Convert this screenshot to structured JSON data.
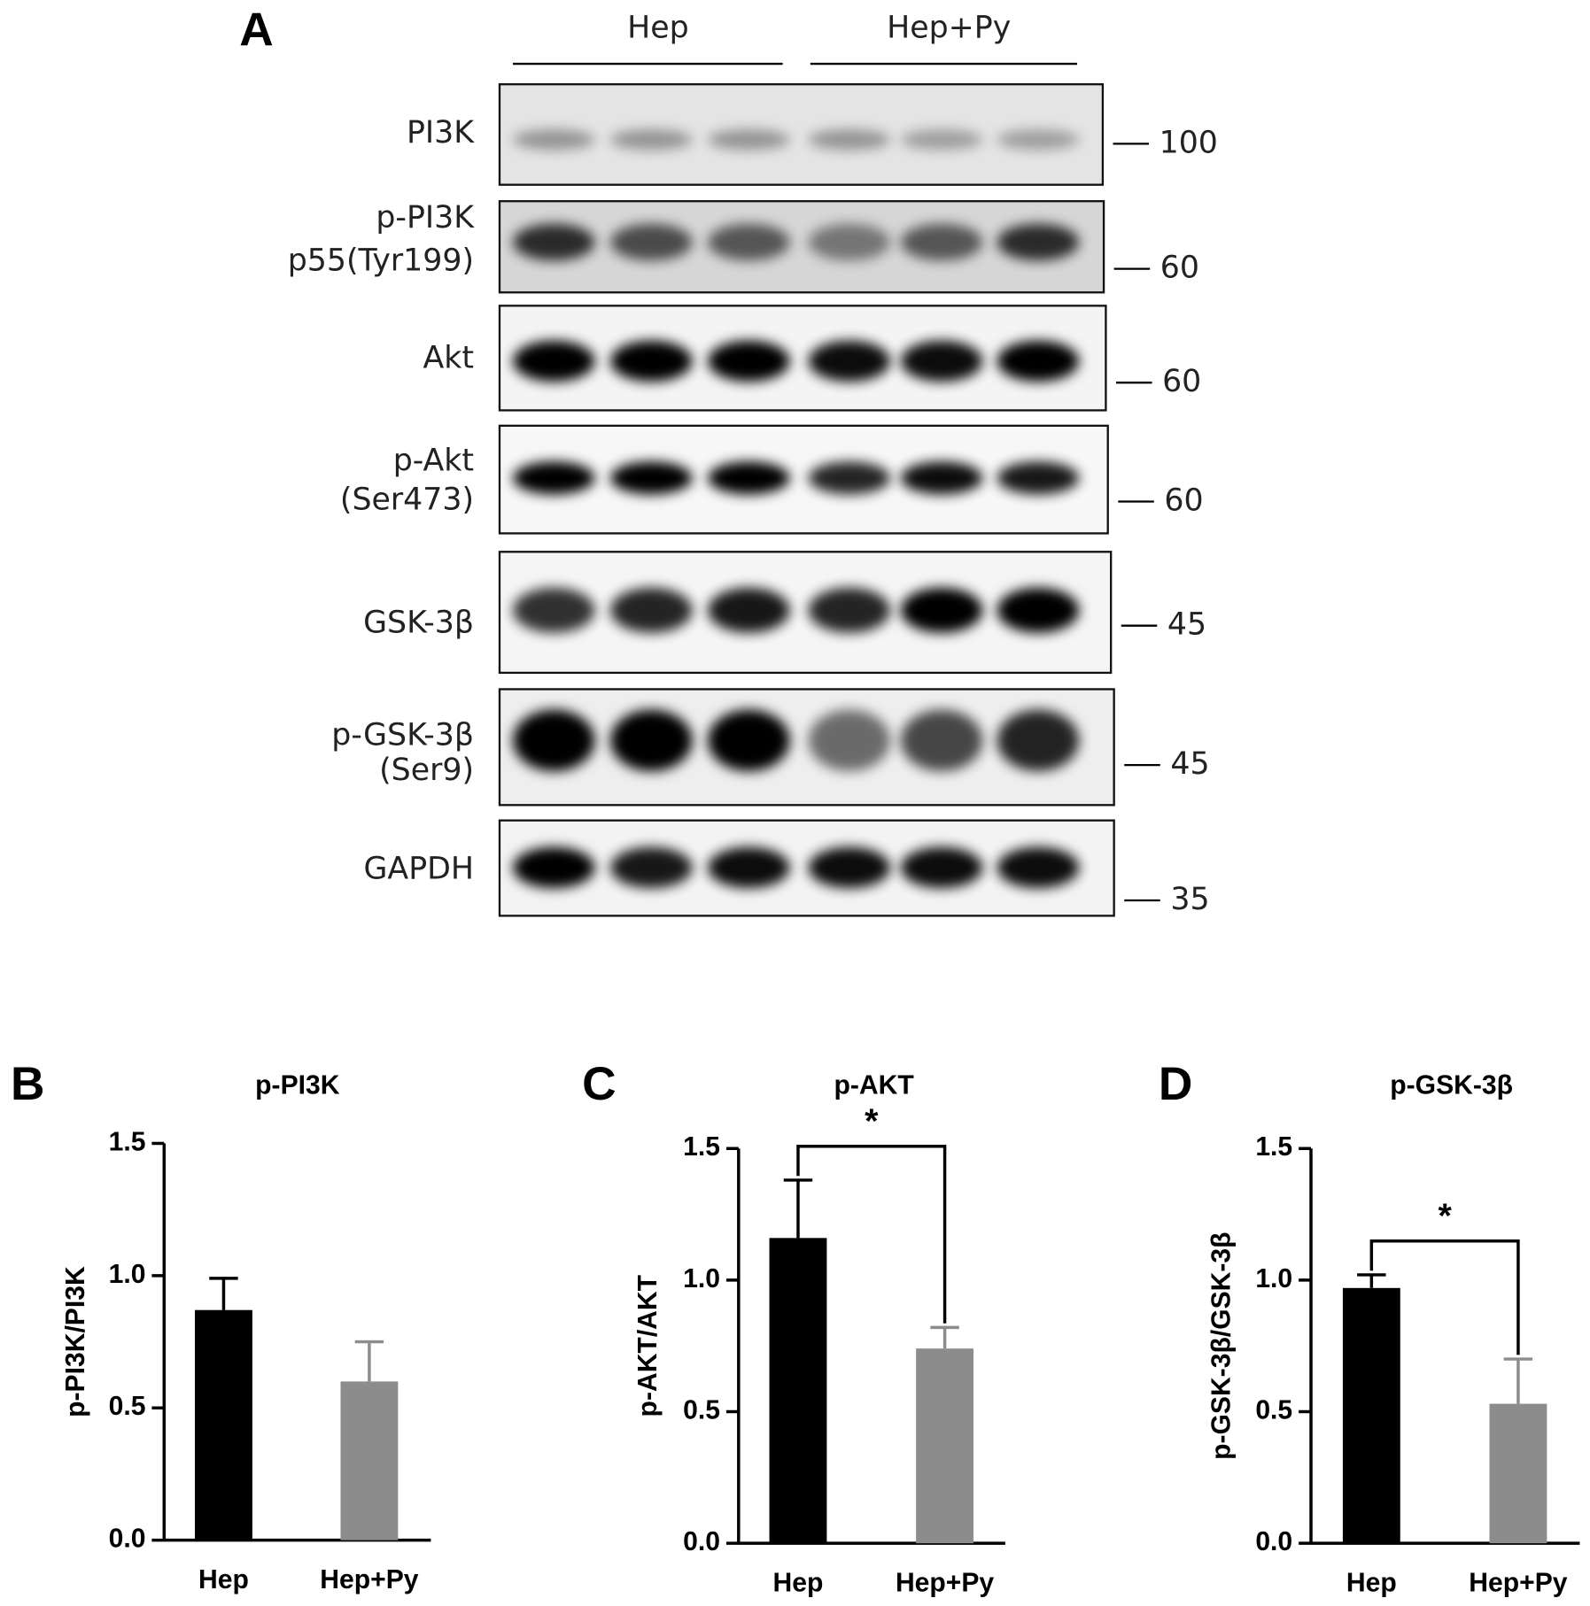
{
  "blot": {
    "panel": "A",
    "groups": [
      "Hep",
      "Hep+Py"
    ],
    "rows": [
      {
        "label": [
          "PI3K"
        ],
        "marker": 100
      },
      {
        "label": [
          "p-PI3K",
          "p55(Tyr199)"
        ],
        "marker": 60
      },
      {
        "label": [
          "Akt"
        ],
        "marker": 60
      },
      {
        "label": [
          "p-Akt",
          "(Ser473)"
        ],
        "marker": 60
      },
      {
        "label": [
          "GSK-3β"
        ],
        "marker": 45
      },
      {
        "label": [
          "p-GSK-3β",
          "(Ser9)"
        ],
        "marker": 45
      },
      {
        "label": [
          "GAPDH"
        ],
        "marker": 35
      }
    ]
  },
  "chart_data": [
    {
      "type": "bar",
      "panel": "B",
      "title": "p-PI3K",
      "ylabel": "p-PI3K/PI3K",
      "categories": [
        "Hep",
        "Hep+Py"
      ],
      "values": [
        0.87,
        0.6
      ],
      "errors": [
        0.12,
        0.15
      ],
      "colors": [
        "#000000",
        "#8c8c8c"
      ],
      "ylim": [
        0,
        1.5
      ],
      "yticks": [
        {
          "value": 0,
          "label": "0.0"
        },
        0.5,
        {
          "value": 1,
          "label": "1.0"
        },
        1.5
      ]
    },
    {
      "type": "bar",
      "panel": "C",
      "title": "p-AKT",
      "ylabel": "p-AKT/AKT",
      "categories": [
        "Hep",
        "Hep+Py"
      ],
      "values": [
        1.16,
        0.74
      ],
      "errors": [
        0.22,
        0.08
      ],
      "colors": [
        "#000000",
        "#8c8c8c"
      ],
      "ylim": [
        0,
        1.5
      ],
      "significance": "*",
      "yticks": [
        {
          "value": 0,
          "label": "0.0"
        },
        0.5,
        {
          "value": 1,
          "label": "1.0"
        },
        1.5
      ]
    },
    {
      "type": "bar",
      "panel": "D",
      "title": "p-GSK-3β",
      "ylabel": "p-GSK-3β/GSK-3β",
      "categories": [
        "Hep",
        "Hep+Py"
      ],
      "values": [
        0.97,
        0.53
      ],
      "errors": [
        0.05,
        0.17
      ],
      "colors": [
        "#000000",
        "#8c8c8c"
      ],
      "ylim": [
        0,
        1.5
      ],
      "significance": "*",
      "yticks": [
        {
          "value": 0,
          "label": "0.0"
        },
        0.5,
        {
          "value": 1,
          "label": "1.0"
        },
        1.5
      ]
    }
  ]
}
